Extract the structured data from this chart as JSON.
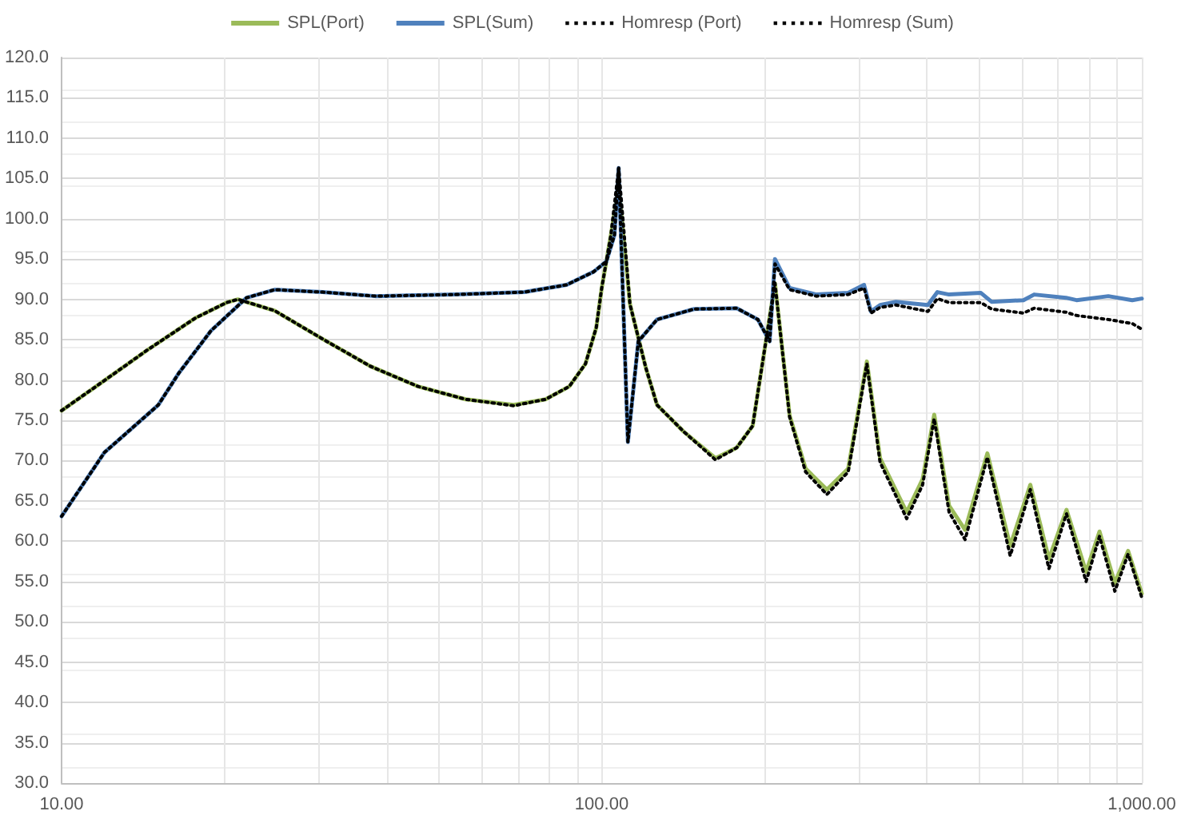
{
  "chart_data": {
    "type": "line",
    "log": "x",
    "grid": true,
    "legend": "top",
    "marker": "none",
    "xlim": [
      10,
      1000
    ],
    "xticks": [
      {
        "value": 10,
        "label": "10.00"
      },
      {
        "value": 20,
        "label": null
      },
      {
        "value": 30,
        "label": null
      },
      {
        "value": 40,
        "label": null
      },
      {
        "value": 50,
        "label": null
      },
      {
        "value": 60,
        "label": null
      },
      {
        "value": 70,
        "label": null
      },
      {
        "value": 80,
        "label": null
      },
      {
        "value": 90,
        "label": null
      },
      {
        "value": 100,
        "label": "100.00"
      },
      {
        "value": 200,
        "label": null
      },
      {
        "value": 300,
        "label": null
      },
      {
        "value": 400,
        "label": null
      },
      {
        "value": 500,
        "label": null
      },
      {
        "value": 600,
        "label": null
      },
      {
        "value": 700,
        "label": null
      },
      {
        "value": 800,
        "label": null
      },
      {
        "value": 900,
        "label": null
      },
      {
        "value": 1000,
        "label": "1,000.00"
      }
    ],
    "ylim": [
      30,
      120
    ],
    "yticks": [
      {
        "value": 30,
        "label": "30.0"
      },
      {
        "value": 35,
        "label": "35.0"
      },
      {
        "value": 40,
        "label": "40.0"
      },
      {
        "value": 45,
        "label": "45.0"
      },
      {
        "value": 50,
        "label": "50.0"
      },
      {
        "value": 55,
        "label": "55.0"
      },
      {
        "value": 60,
        "label": "60.0"
      },
      {
        "value": 65,
        "label": "65.0"
      },
      {
        "value": 70,
        "label": "70.0"
      },
      {
        "value": 75,
        "label": "75.0"
      },
      {
        "value": 80,
        "label": "80.0"
      },
      {
        "value": 85,
        "label": "85.0"
      },
      {
        "value": 90,
        "label": "90.0"
      },
      {
        "value": 95,
        "label": "95.0"
      },
      {
        "value": 100,
        "label": "100.0"
      },
      {
        "value": 105,
        "label": "105.0"
      },
      {
        "value": 110,
        "label": "110.0"
      },
      {
        "value": 115,
        "label": "115.0"
      },
      {
        "value": 120,
        "label": "120.0"
      }
    ],
    "series": [
      {
        "name": "SPL(Port)",
        "color": "#9bbb59",
        "line_style": "solid",
        "x": [
          10,
          11.75,
          14.4,
          17.7,
          20.2,
          21.2,
          24.8,
          30.4,
          37.3,
          45.7,
          56,
          68.7,
          78.7,
          87.1,
          93.3,
          97.7,
          100,
          104,
          107.5,
          112.8,
          120.7,
          126.6,
          141.8,
          162.4,
          177.8,
          190.3,
          209.3,
          222.8,
          238.5,
          261.2,
          286,
          309.7,
          327.6,
          367,
          392.8,
          412.7,
          439.7,
          470.7,
          517.6,
          570.6,
          621.6,
          673,
          725.3,
          788.6,
          834.9,
          891.3,
          943.2,
          1000
        ],
        "values": [
          76.2,
          79.5,
          83.7,
          87.7,
          89.6,
          90,
          88.6,
          85.1,
          81.7,
          79.2,
          77.6,
          76.9,
          77.6,
          79.2,
          82,
          86.5,
          91.4,
          98,
          104,
          89.4,
          81.5,
          76.9,
          73.6,
          70.3,
          71.6,
          74.3,
          92,
          75.6,
          69,
          66.4,
          69,
          82.3,
          70.3,
          63.6,
          67.7,
          75.7,
          64.4,
          61.4,
          70.9,
          59.4,
          67,
          57.8,
          63.9,
          56.2,
          61.2,
          54.8,
          58.8,
          53.5
        ]
      },
      {
        "name": "SPL(Sum)",
        "color": "#4f81bd",
        "line_style": "solid",
        "x": [
          10,
          12,
          15.1,
          16.5,
          18.9,
          22,
          24.8,
          30.4,
          38.1,
          53.5,
          71.9,
          86.1,
          96.5,
          102,
          105.6,
          107.5,
          111.8,
          116.9,
          126.6,
          148.3,
          177.8,
          194.6,
          204.6,
          209.3,
          222.8,
          249.6,
          286,
          306,
          315.1,
          327.6,
          350.6,
          401.7,
          418.3,
          439.7,
          503.6,
          527,
          603.7,
          631.9,
          723.9,
          757,
          866.9,
          960,
          1000
        ],
        "values": [
          63.1,
          71,
          76.9,
          80.9,
          86.1,
          90.2,
          91.2,
          90.9,
          90.4,
          90.6,
          90.9,
          91.8,
          93.4,
          94.7,
          98,
          106.3,
          72.3,
          84.8,
          87.5,
          88.8,
          88.9,
          87.5,
          84.8,
          95,
          91.4,
          90.6,
          90.8,
          91.8,
          88.5,
          89.3,
          89.7,
          89.3,
          90.9,
          90.6,
          90.8,
          89.7,
          89.9,
          90.6,
          90.2,
          89.9,
          90.4,
          89.9,
          90.1
        ]
      },
      {
        "name": "Homresp (Port)",
        "color": "#000000",
        "line_style": "dotted",
        "x": [
          10,
          11.75,
          14.4,
          17.7,
          20.2,
          21.2,
          24.8,
          30.4,
          37.3,
          45.7,
          56,
          68.7,
          78.7,
          87.1,
          93.3,
          97.7,
          100,
          104,
          107.5,
          112.8,
          120.7,
          126.6,
          141.8,
          162.4,
          177.8,
          190.3,
          209.3,
          222.8,
          238.5,
          261.2,
          286,
          309.7,
          327.6,
          367,
          392.8,
          412.7,
          439.7,
          470.7,
          517.6,
          570.6,
          621.6,
          673,
          725.3,
          788.6,
          834.9,
          891.3,
          943.2,
          1000
        ],
        "values": [
          76.2,
          79.5,
          83.7,
          87.7,
          89.6,
          90,
          88.6,
          85.1,
          81.7,
          79.2,
          77.6,
          76.8,
          77.6,
          79.2,
          82,
          86.5,
          91.4,
          98,
          106.3,
          89.4,
          81.5,
          76.9,
          73.6,
          70.1,
          71.6,
          74.3,
          92,
          75.4,
          68.6,
          65.8,
          68.6,
          82,
          69.8,
          62.8,
          67,
          75.2,
          63.6,
          60.2,
          70.4,
          58.2,
          66.4,
          56.6,
          63.4,
          55,
          60.6,
          53.8,
          58.4,
          53
        ]
      },
      {
        "name": "Homresp (Sum)",
        "color": "#000000",
        "line_style": "dotted",
        "x": [
          10,
          12,
          15.1,
          16.5,
          18.9,
          22,
          24.8,
          30.4,
          38.1,
          53.5,
          71.9,
          86.1,
          96.5,
          102,
          105.6,
          107.5,
          111.8,
          116.9,
          126.6,
          148.3,
          177.8,
          194.6,
          204.6,
          209.3,
          222.8,
          249.6,
          286,
          306,
          315.1,
          327.6,
          350.6,
          401.7,
          418.3,
          439.7,
          503.6,
          527,
          603.7,
          631.9,
          723.9,
          757,
          866.9,
          960,
          1000
        ],
        "values": [
          63.1,
          71,
          76.9,
          80.9,
          86.1,
          90.2,
          91.2,
          90.9,
          90.4,
          90.6,
          90.9,
          91.8,
          93.4,
          94.7,
          98,
          106.3,
          72.3,
          84.8,
          87.5,
          88.8,
          88.9,
          87.5,
          84.8,
          94.4,
          91.2,
          90.4,
          90.6,
          91.4,
          88.3,
          89,
          89.3,
          88.5,
          90.1,
          89.6,
          89.6,
          88.8,
          88.3,
          88.9,
          88.4,
          88,
          87.5,
          87,
          86.3
        ]
      }
    ]
  }
}
